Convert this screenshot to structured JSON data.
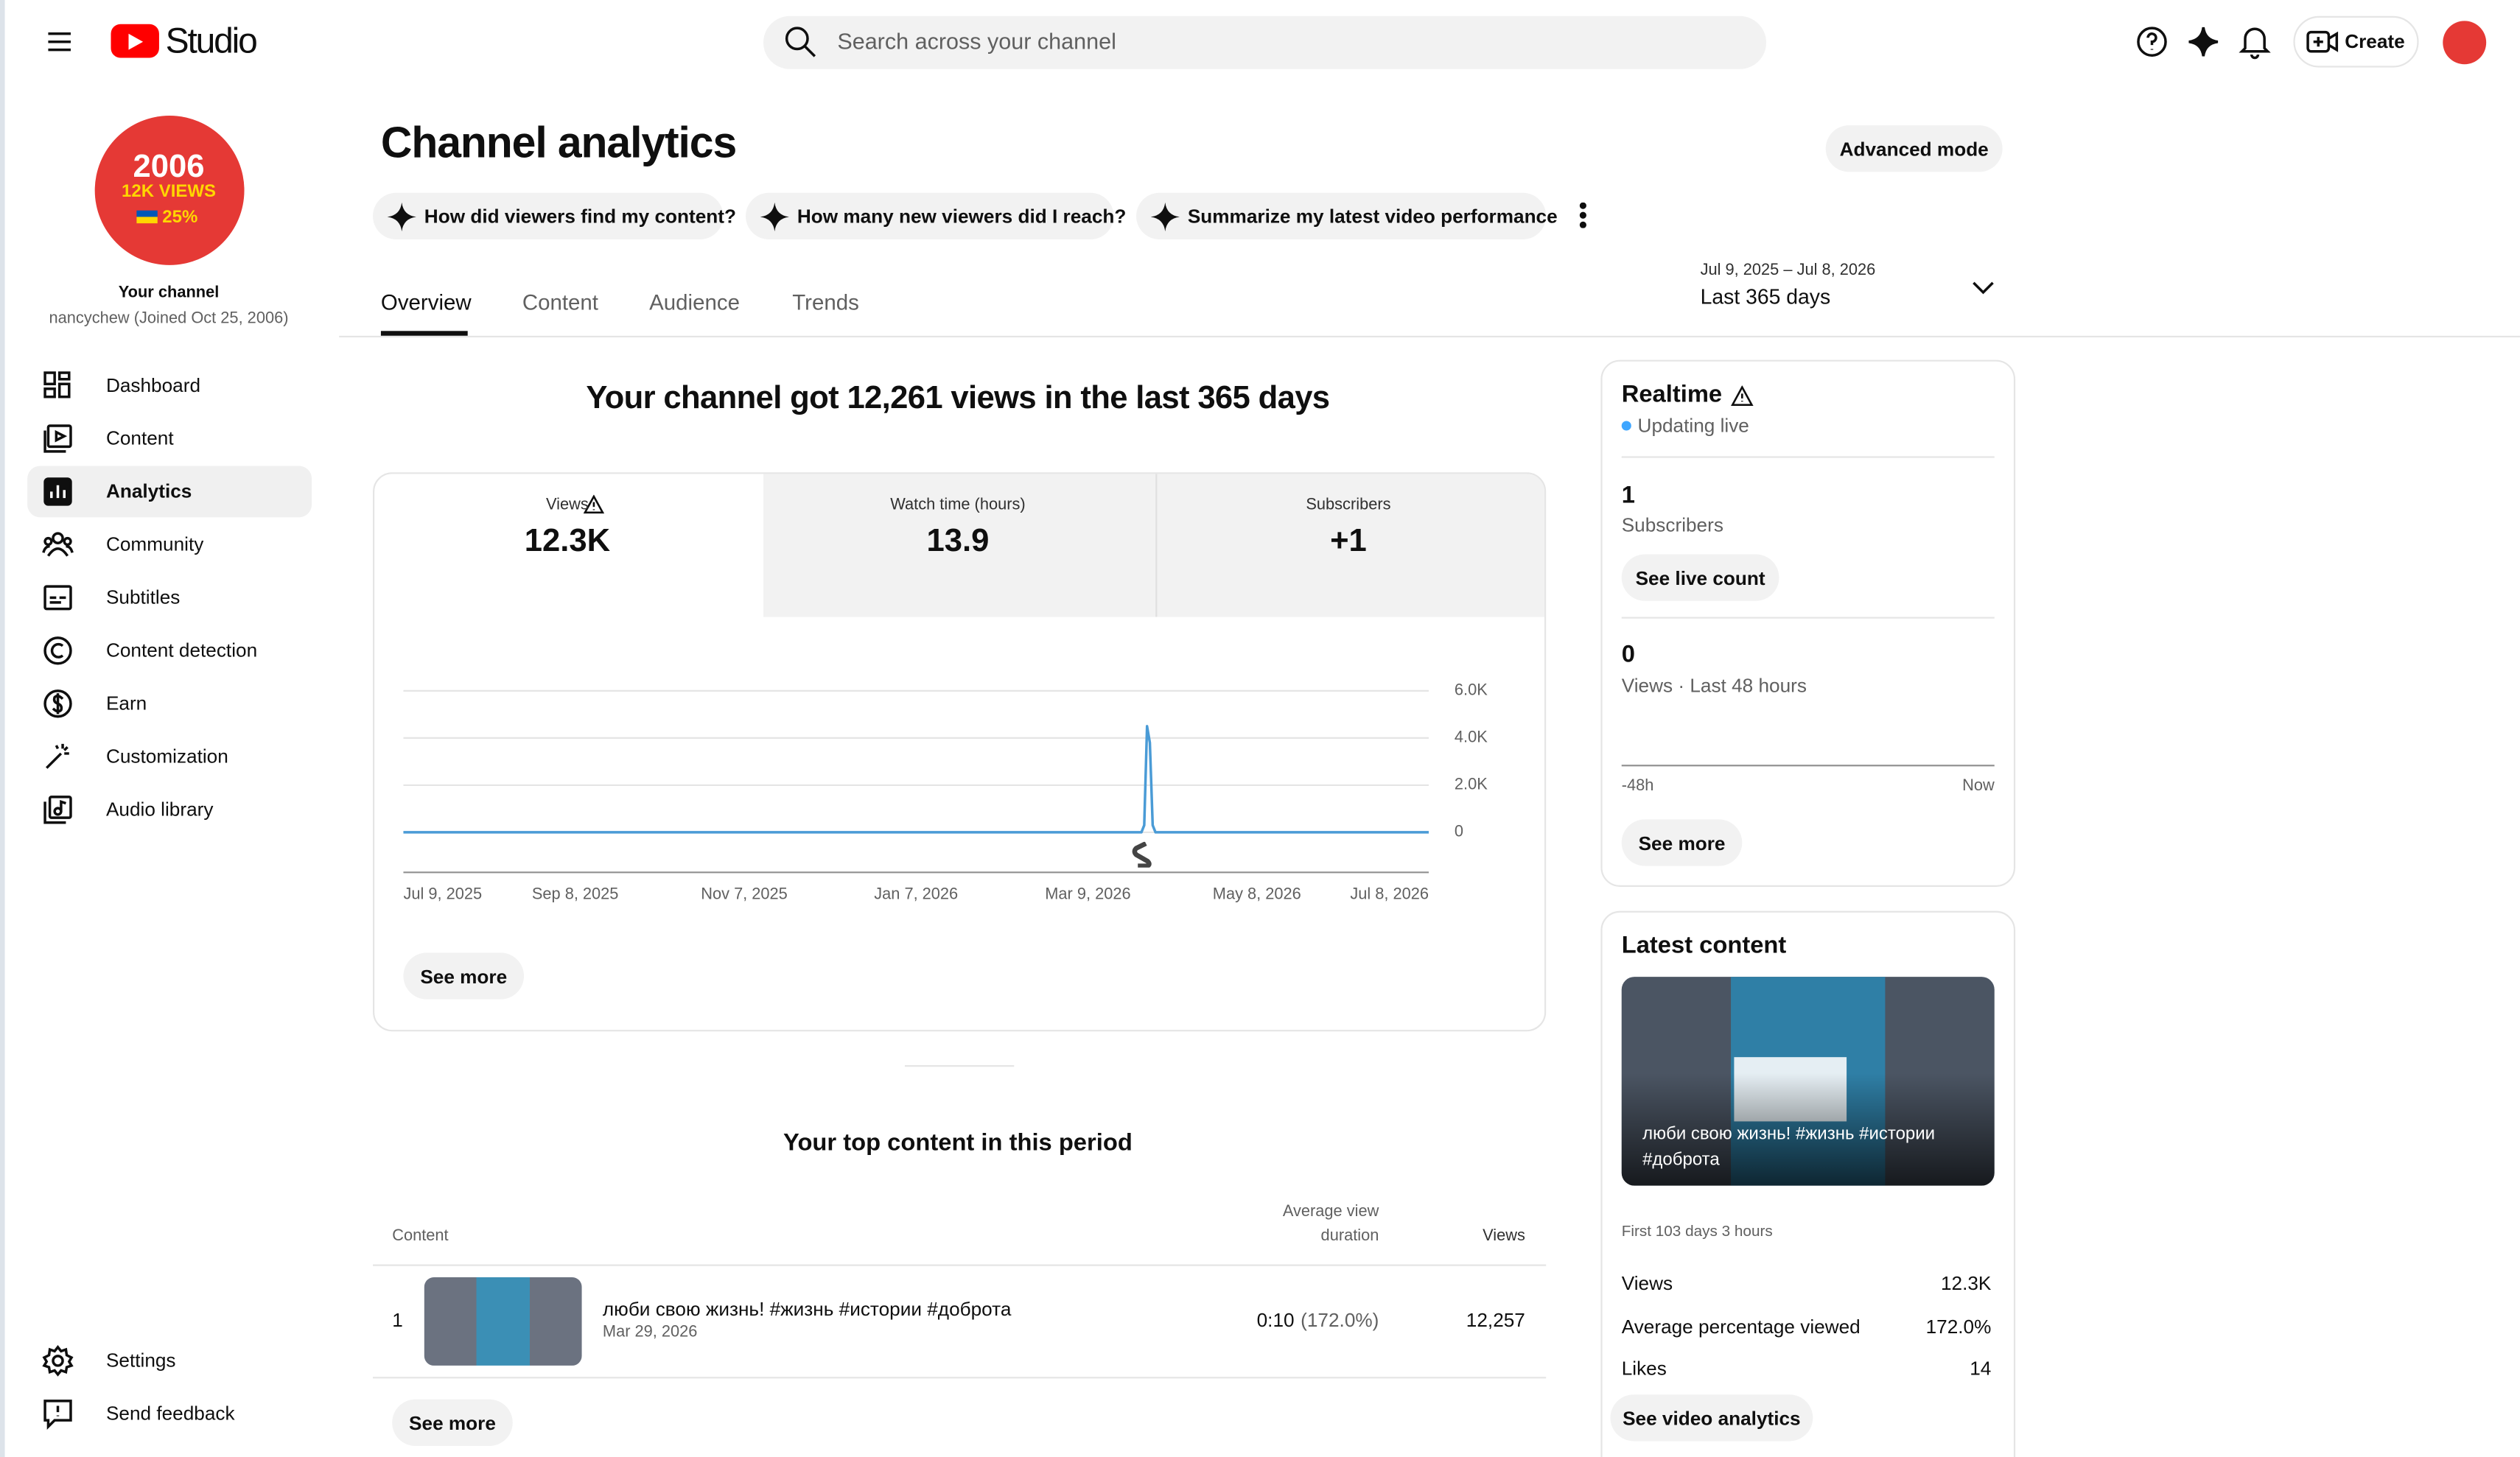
{
  "header": {
    "logo": "Studio",
    "search_placeholder": "Search across your channel",
    "create": "Create"
  },
  "sidebar": {
    "avatar_lines": [
      "2006",
      "12K VIEWS",
      "25%"
    ],
    "channel_label": "Your channel",
    "channel_meta": "nancychew (Joined Oct 25, 2006)",
    "nav": [
      "Dashboard",
      "Content",
      "Analytics",
      "Community",
      "Subtitles",
      "Content detection",
      "Earn",
      "Customization",
      "Audio library"
    ],
    "footer_nav": [
      "Settings",
      "Send feedback"
    ]
  },
  "page": {
    "title": "Channel analytics",
    "advanced": "Advanced mode",
    "prompts": [
      "How did viewers find my content?",
      "How many new viewers did I reach?",
      "Summarize my latest video performance"
    ],
    "tabs": [
      "Overview",
      "Content",
      "Audience",
      "Trends"
    ],
    "date_range": "Jul 9, 2025 – Jul 8, 2026",
    "period": "Last 365 days"
  },
  "summary": {
    "headline": "Your channel got 12,261 views in the last 365 days",
    "metrics": [
      {
        "label": "Views",
        "value": "12.3K"
      },
      {
        "label": "Watch time (hours)",
        "value": "13.9"
      },
      {
        "label": "Subscribers",
        "value": "+1"
      }
    ],
    "chart": {
      "type": "line",
      "color": "#4a9bd6",
      "x": [
        "Jul 9, 2025",
        "Mar 28, 2026",
        "Mar 29, 2026",
        "Mar 30, 2026",
        "Mar 31, 2026",
        "Apr 1, 2026",
        "Apr 2, 2026",
        "Jul 8, 2026"
      ],
      "values": [
        0,
        0,
        300,
        4500,
        3800,
        300,
        0,
        0
      ],
      "xlim": [
        "Jul 9, 2025",
        "Jul 8, 2026"
      ],
      "xticks": [
        "Jul 9, 2025",
        "Sep 8, 2025",
        "Nov 7, 2025",
        "Jan 7, 2026",
        "Mar 9, 2026",
        "May 8, 2026",
        "Jul 8, 2026"
      ],
      "ylim": [
        -1700,
        6000
      ],
      "yticks": [
        0,
        {
          "value": 2000,
          "label": "2.0K"
        },
        {
          "value": 4000,
          "label": "4.0K"
        },
        {
          "value": 6000,
          "label": "6.0K"
        }
      ],
      "grid": true
    },
    "see_more": "See more"
  },
  "top_content": {
    "title": "Your top content in this period",
    "columns": [
      "Content",
      "Average view",
      "duration",
      "Views"
    ],
    "rows": [
      {
        "rank": "1",
        "title": "люби свою жизнь! #жизнь #истории #доброта",
        "date": "Mar 29, 2026",
        "duration": "0:10",
        "percent": "(172.0%)",
        "views": "12,257"
      }
    ],
    "see_more": "See more"
  },
  "realtime": {
    "title": "Realtime",
    "status": "Updating live",
    "subscribers": "1",
    "subscribers_label": "Subscribers",
    "live_button": "See live count",
    "views": "0",
    "views_label": "Views · Last 48 hours",
    "axis_start": "-48h",
    "axis_end": "Now",
    "see_more": "See more"
  },
  "latest": {
    "title": "Latest content",
    "video_title": "люби свою жизнь! #жизнь #истории #доброта",
    "age": "First 103 days 3 hours",
    "stats": [
      {
        "label": "Views",
        "value": "12.3K"
      },
      {
        "label": "Average percentage viewed",
        "value": "172.0%"
      },
      {
        "label": "Likes",
        "value": "14"
      }
    ],
    "button": "See video analytics"
  }
}
